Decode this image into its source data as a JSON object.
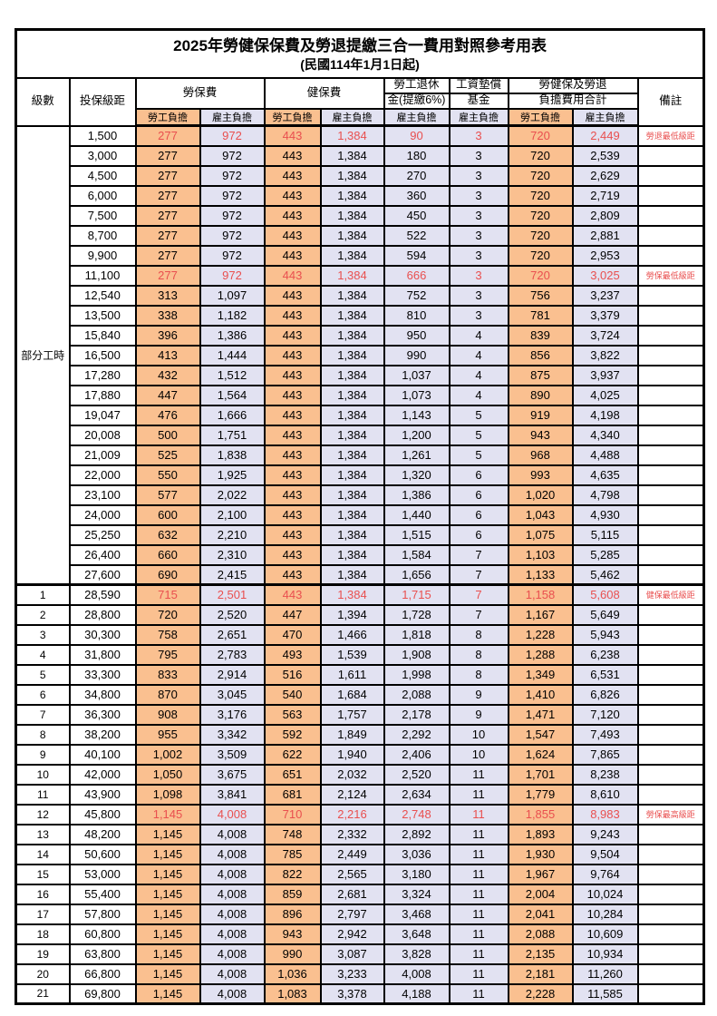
{
  "title": "2025年勞健保保費及勞退提繳三合一費用對照參考用表",
  "subtitle": "(民國114年1月1日起)",
  "headers": {
    "level": "級數",
    "bracket": "投保級距",
    "labor_ins": "勞保費",
    "health_ins": "健保費",
    "pension_line1": "勞工退休",
    "pension_line2": "金(提繳6%)",
    "wage_fund_line1": "工資墊償",
    "wage_fund_line2": "基金",
    "total_line1": "勞健保及勞退",
    "total_line2": "負擔費用合計",
    "remark": "備註",
    "worker_label": "勞工負擔",
    "employer_label": "雇主負擔"
  },
  "part_time_label": "部分工時",
  "colors": {
    "worker_bg": "#FAC090",
    "employer_bg": "#E2E2F2",
    "highlight_red": "#E94F4F"
  },
  "rows": [
    {
      "level": "",
      "bracket": "1,500",
      "values": [
        "277",
        "972",
        "443",
        "1,384",
        "90",
        "3",
        "720",
        "2,449"
      ],
      "remark": "勞退最低級距",
      "red": true
    },
    {
      "level": "",
      "bracket": "3,000",
      "values": [
        "277",
        "972",
        "443",
        "1,384",
        "180",
        "3",
        "720",
        "2,539"
      ],
      "remark": "",
      "red": false
    },
    {
      "level": "",
      "bracket": "4,500",
      "values": [
        "277",
        "972",
        "443",
        "1,384",
        "270",
        "3",
        "720",
        "2,629"
      ],
      "remark": "",
      "red": false
    },
    {
      "level": "",
      "bracket": "6,000",
      "values": [
        "277",
        "972",
        "443",
        "1,384",
        "360",
        "3",
        "720",
        "2,719"
      ],
      "remark": "",
      "red": false
    },
    {
      "level": "",
      "bracket": "7,500",
      "values": [
        "277",
        "972",
        "443",
        "1,384",
        "450",
        "3",
        "720",
        "2,809"
      ],
      "remark": "",
      "red": false
    },
    {
      "level": "",
      "bracket": "8,700",
      "values": [
        "277",
        "972",
        "443",
        "1,384",
        "522",
        "3",
        "720",
        "2,881"
      ],
      "remark": "",
      "red": false
    },
    {
      "level": "",
      "bracket": "9,900",
      "values": [
        "277",
        "972",
        "443",
        "1,384",
        "594",
        "3",
        "720",
        "2,953"
      ],
      "remark": "",
      "red": false
    },
    {
      "level": "",
      "bracket": "11,100",
      "values": [
        "277",
        "972",
        "443",
        "1,384",
        "666",
        "3",
        "720",
        "3,025"
      ],
      "remark": "勞保最低級距",
      "red": true
    },
    {
      "level": "",
      "bracket": "12,540",
      "values": [
        "313",
        "1,097",
        "443",
        "1,384",
        "752",
        "3",
        "756",
        "3,237"
      ],
      "remark": "",
      "red": false
    },
    {
      "level": "",
      "bracket": "13,500",
      "values": [
        "338",
        "1,182",
        "443",
        "1,384",
        "810",
        "3",
        "781",
        "3,379"
      ],
      "remark": "",
      "red": false
    },
    {
      "level": "",
      "bracket": "15,840",
      "values": [
        "396",
        "1,386",
        "443",
        "1,384",
        "950",
        "4",
        "839",
        "3,724"
      ],
      "remark": "",
      "red": false
    },
    {
      "level": "",
      "bracket": "16,500",
      "values": [
        "413",
        "1,444",
        "443",
        "1,384",
        "990",
        "4",
        "856",
        "3,822"
      ],
      "remark": "",
      "red": false
    },
    {
      "level": "",
      "bracket": "17,280",
      "values": [
        "432",
        "1,512",
        "443",
        "1,384",
        "1,037",
        "4",
        "875",
        "3,937"
      ],
      "remark": "",
      "red": false
    },
    {
      "level": "",
      "bracket": "17,880",
      "values": [
        "447",
        "1,564",
        "443",
        "1,384",
        "1,073",
        "4",
        "890",
        "4,025"
      ],
      "remark": "",
      "red": false
    },
    {
      "level": "",
      "bracket": "19,047",
      "values": [
        "476",
        "1,666",
        "443",
        "1,384",
        "1,143",
        "5",
        "919",
        "4,198"
      ],
      "remark": "",
      "red": false
    },
    {
      "level": "",
      "bracket": "20,008",
      "values": [
        "500",
        "1,751",
        "443",
        "1,384",
        "1,200",
        "5",
        "943",
        "4,340"
      ],
      "remark": "",
      "red": false
    },
    {
      "level": "",
      "bracket": "21,009",
      "values": [
        "525",
        "1,838",
        "443",
        "1,384",
        "1,261",
        "5",
        "968",
        "4,488"
      ],
      "remark": "",
      "red": false
    },
    {
      "level": "",
      "bracket": "22,000",
      "values": [
        "550",
        "1,925",
        "443",
        "1,384",
        "1,320",
        "6",
        "993",
        "4,635"
      ],
      "remark": "",
      "red": false
    },
    {
      "level": "",
      "bracket": "23,100",
      "values": [
        "577",
        "2,022",
        "443",
        "1,384",
        "1,386",
        "6",
        "1,020",
        "4,798"
      ],
      "remark": "",
      "red": false
    },
    {
      "level": "",
      "bracket": "24,000",
      "values": [
        "600",
        "2,100",
        "443",
        "1,384",
        "1,440",
        "6",
        "1,043",
        "4,930"
      ],
      "remark": "",
      "red": false
    },
    {
      "level": "",
      "bracket": "25,250",
      "values": [
        "632",
        "2,210",
        "443",
        "1,384",
        "1,515",
        "6",
        "1,075",
        "5,115"
      ],
      "remark": "",
      "red": false
    },
    {
      "level": "",
      "bracket": "26,400",
      "values": [
        "660",
        "2,310",
        "443",
        "1,384",
        "1,584",
        "7",
        "1,103",
        "5,285"
      ],
      "remark": "",
      "red": false
    },
    {
      "level": "",
      "bracket": "27,600",
      "values": [
        "690",
        "2,415",
        "443",
        "1,384",
        "1,656",
        "7",
        "1,133",
        "5,462"
      ],
      "remark": "",
      "red": false
    },
    {
      "level": "1",
      "bracket": "28,590",
      "values": [
        "715",
        "2,501",
        "443",
        "1,384",
        "1,715",
        "7",
        "1,158",
        "5,608"
      ],
      "remark": "健保最低級距",
      "red": true
    },
    {
      "level": "2",
      "bracket": "28,800",
      "values": [
        "720",
        "2,520",
        "447",
        "1,394",
        "1,728",
        "7",
        "1,167",
        "5,649"
      ],
      "remark": "",
      "red": false
    },
    {
      "level": "3",
      "bracket": "30,300",
      "values": [
        "758",
        "2,651",
        "470",
        "1,466",
        "1,818",
        "8",
        "1,228",
        "5,943"
      ],
      "remark": "",
      "red": false
    },
    {
      "level": "4",
      "bracket": "31,800",
      "values": [
        "795",
        "2,783",
        "493",
        "1,539",
        "1,908",
        "8",
        "1,288",
        "6,238"
      ],
      "remark": "",
      "red": false
    },
    {
      "level": "5",
      "bracket": "33,300",
      "values": [
        "833",
        "2,914",
        "516",
        "1,611",
        "1,998",
        "8",
        "1,349",
        "6,531"
      ],
      "remark": "",
      "red": false
    },
    {
      "level": "6",
      "bracket": "34,800",
      "values": [
        "870",
        "3,045",
        "540",
        "1,684",
        "2,088",
        "9",
        "1,410",
        "6,826"
      ],
      "remark": "",
      "red": false
    },
    {
      "level": "7",
      "bracket": "36,300",
      "values": [
        "908",
        "3,176",
        "563",
        "1,757",
        "2,178",
        "9",
        "1,471",
        "7,120"
      ],
      "remark": "",
      "red": false
    },
    {
      "level": "8",
      "bracket": "38,200",
      "values": [
        "955",
        "3,342",
        "592",
        "1,849",
        "2,292",
        "10",
        "1,547",
        "7,493"
      ],
      "remark": "",
      "red": false
    },
    {
      "level": "9",
      "bracket": "40,100",
      "values": [
        "1,002",
        "3,509",
        "622",
        "1,940",
        "2,406",
        "10",
        "1,624",
        "7,865"
      ],
      "remark": "",
      "red": false
    },
    {
      "level": "10",
      "bracket": "42,000",
      "values": [
        "1,050",
        "3,675",
        "651",
        "2,032",
        "2,520",
        "11",
        "1,701",
        "8,238"
      ],
      "remark": "",
      "red": false
    },
    {
      "level": "11",
      "bracket": "43,900",
      "values": [
        "1,098",
        "3,841",
        "681",
        "2,124",
        "2,634",
        "11",
        "1,779",
        "8,610"
      ],
      "remark": "",
      "red": false
    },
    {
      "level": "12",
      "bracket": "45,800",
      "values": [
        "1,145",
        "4,008",
        "710",
        "2,216",
        "2,748",
        "11",
        "1,855",
        "8,983"
      ],
      "remark": "勞保最高級距",
      "red": true
    },
    {
      "level": "13",
      "bracket": "48,200",
      "values": [
        "1,145",
        "4,008",
        "748",
        "2,332",
        "2,892",
        "11",
        "1,893",
        "9,243"
      ],
      "remark": "",
      "red": false
    },
    {
      "level": "14",
      "bracket": "50,600",
      "values": [
        "1,145",
        "4,008",
        "785",
        "2,449",
        "3,036",
        "11",
        "1,930",
        "9,504"
      ],
      "remark": "",
      "red": false
    },
    {
      "level": "15",
      "bracket": "53,000",
      "values": [
        "1,145",
        "4,008",
        "822",
        "2,565",
        "3,180",
        "11",
        "1,967",
        "9,764"
      ],
      "remark": "",
      "red": false
    },
    {
      "level": "16",
      "bracket": "55,400",
      "values": [
        "1,145",
        "4,008",
        "859",
        "2,681",
        "3,324",
        "11",
        "2,004",
        "10,024"
      ],
      "remark": "",
      "red": false
    },
    {
      "level": "17",
      "bracket": "57,800",
      "values": [
        "1,145",
        "4,008",
        "896",
        "2,797",
        "3,468",
        "11",
        "2,041",
        "10,284"
      ],
      "remark": "",
      "red": false
    },
    {
      "level": "18",
      "bracket": "60,800",
      "values": [
        "1,145",
        "4,008",
        "943",
        "2,942",
        "3,648",
        "11",
        "2,088",
        "10,609"
      ],
      "remark": "",
      "red": false
    },
    {
      "level": "19",
      "bracket": "63,800",
      "values": [
        "1,145",
        "4,008",
        "990",
        "3,087",
        "3,828",
        "11",
        "2,135",
        "10,934"
      ],
      "remark": "",
      "red": false
    },
    {
      "level": "20",
      "bracket": "66,800",
      "values": [
        "1,145",
        "4,008",
        "1,036",
        "3,233",
        "4,008",
        "11",
        "2,181",
        "11,260"
      ],
      "remark": "",
      "red": false
    },
    {
      "level": "21",
      "bracket": "69,800",
      "values": [
        "1,145",
        "4,008",
        "1,083",
        "3,378",
        "4,188",
        "11",
        "2,228",
        "11,585"
      ],
      "remark": "",
      "red": false
    }
  ]
}
